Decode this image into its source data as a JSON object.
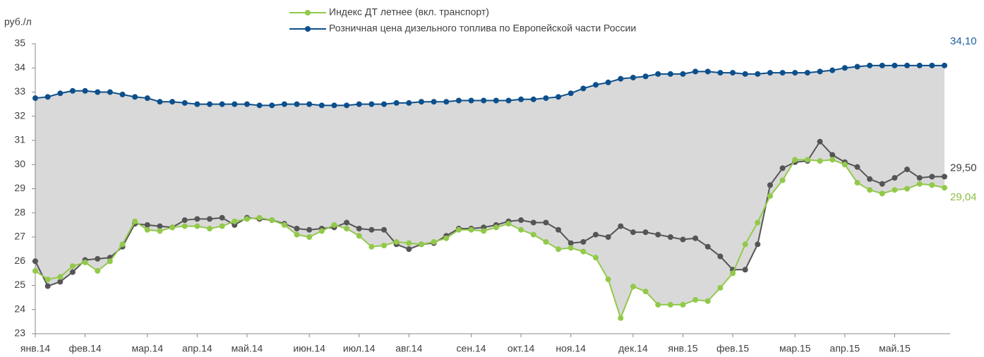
{
  "chart_data": {
    "type": "line",
    "y_label": "руб./л",
    "ylim": [
      23,
      35
    ],
    "yticks": [
      23,
      24,
      25,
      26,
      27,
      28,
      29,
      30,
      31,
      32,
      33,
      34,
      35
    ],
    "fill_between": true,
    "fill_color": "#d9d9d9",
    "categories": [
      "янв.14",
      null,
      null,
      null,
      "фев.14",
      null,
      null,
      null,
      null,
      "мар.14",
      null,
      null,
      null,
      "апр.14",
      null,
      null,
      null,
      "май.14",
      null,
      null,
      null,
      null,
      "июн.14",
      null,
      null,
      null,
      "июл.14",
      null,
      null,
      null,
      "авг.14",
      null,
      null,
      null,
      null,
      "сен.14",
      null,
      null,
      null,
      "окт.14",
      null,
      null,
      null,
      "ноя.14",
      null,
      null,
      null,
      null,
      "дек.14",
      null,
      null,
      null,
      "янв.15",
      null,
      null,
      null,
      "фев.15",
      null,
      null,
      null,
      null,
      "мар.15",
      null,
      null,
      null,
      "апр.15",
      null,
      null,
      null,
      "май.15",
      null,
      null,
      null,
      null
    ],
    "series": [
      {
        "name": "Индекс ДТ летнее  (вкл. транспорт)",
        "color": "#92c94a",
        "label_color": "#8cbf3f",
        "values": [
          25.6,
          25.25,
          25.35,
          25.8,
          25.95,
          25.6,
          26.0,
          26.7,
          27.65,
          27.3,
          27.25,
          27.4,
          27.45,
          27.45,
          27.35,
          27.45,
          27.65,
          27.75,
          27.8,
          27.7,
          27.5,
          27.1,
          27.0,
          27.25,
          27.5,
          27.35,
          27.05,
          26.6,
          26.65,
          26.8,
          26.75,
          26.7,
          26.8,
          26.95,
          27.3,
          27.3,
          27.25,
          27.4,
          27.55,
          27.3,
          27.1,
          26.8,
          26.5,
          26.55,
          26.4,
          26.15,
          25.25,
          23.65,
          24.95,
          24.75,
          24.2,
          24.2,
          24.2,
          24.4,
          24.35,
          24.9,
          25.5,
          26.7,
          27.6,
          28.7,
          29.35,
          30.2,
          30.2,
          30.15,
          30.2,
          30.0,
          29.25,
          28.95,
          28.8,
          28.95,
          29.0,
          29.2,
          29.15,
          29.04
        ],
        "value_labels": [
          null,
          null,
          null,
          null,
          null,
          null,
          null,
          null,
          null,
          null,
          null,
          null,
          null,
          null,
          null,
          null,
          null,
          null,
          null,
          null,
          null,
          null,
          null,
          null,
          null,
          null,
          null,
          null,
          null,
          null,
          null,
          null,
          null,
          null,
          null,
          null,
          null,
          null,
          null,
          null,
          null,
          null,
          null,
          null,
          null,
          null,
          null,
          null,
          null,
          null,
          null,
          null,
          null,
          null,
          null,
          null,
          null,
          null,
          null,
          null,
          null,
          null,
          null,
          null,
          null,
          null,
          null,
          null,
          null,
          null,
          null,
          null,
          null,
          "29,04"
        ]
      },
      {
        "name": "Розничная цена дизельного топлива  по Европейской части России",
        "color": "#0d4f8b",
        "label_color": "#1f5fa0",
        "values": [
          32.75,
          32.8,
          32.95,
          33.05,
          33.05,
          33.0,
          33.0,
          32.9,
          32.8,
          32.75,
          32.6,
          32.6,
          32.55,
          32.5,
          32.5,
          32.5,
          32.5,
          32.5,
          32.45,
          32.45,
          32.5,
          32.5,
          32.5,
          32.45,
          32.45,
          32.45,
          32.5,
          32.5,
          32.5,
          32.55,
          32.55,
          32.6,
          32.6,
          32.6,
          32.65,
          32.65,
          32.65,
          32.65,
          32.65,
          32.7,
          32.7,
          32.75,
          32.8,
          32.95,
          33.15,
          33.3,
          33.4,
          33.55,
          33.6,
          33.65,
          33.75,
          33.75,
          33.75,
          33.85,
          33.85,
          33.8,
          33.8,
          33.75,
          33.75,
          33.8,
          33.8,
          33.8,
          33.8,
          33.85,
          33.9,
          34.0,
          34.05,
          34.1,
          34.1,
          34.1,
          34.1,
          34.1,
          34.1,
          34.1
        ],
        "value_labels": [
          null,
          null,
          null,
          null,
          null,
          null,
          null,
          null,
          null,
          null,
          null,
          null,
          null,
          null,
          null,
          null,
          null,
          null,
          null,
          null,
          null,
          null,
          null,
          null,
          null,
          null,
          null,
          null,
          null,
          null,
          null,
          null,
          null,
          null,
          null,
          null,
          null,
          null,
          null,
          null,
          null,
          null,
          null,
          null,
          null,
          null,
          null,
          null,
          null,
          null,
          null,
          null,
          null,
          null,
          null,
          null,
          null,
          null,
          null,
          null,
          null,
          null,
          null,
          null,
          null,
          null,
          null,
          null,
          null,
          null,
          null,
          null,
          null,
          "34,10"
        ]
      },
      {
        "color": "#555555",
        "label_color": "#404040",
        "values": [
          26.0,
          24.97,
          25.15,
          25.55,
          26.05,
          26.1,
          26.15,
          26.6,
          27.55,
          27.5,
          27.45,
          27.4,
          27.7,
          27.75,
          27.75,
          27.8,
          27.5,
          27.8,
          27.75,
          27.7,
          27.55,
          27.35,
          27.3,
          27.35,
          27.4,
          27.6,
          27.35,
          27.3,
          27.3,
          26.7,
          26.5,
          26.7,
          26.75,
          27.05,
          27.35,
          27.35,
          27.4,
          27.5,
          27.65,
          27.7,
          27.6,
          27.6,
          27.3,
          26.75,
          26.8,
          27.1,
          27.0,
          27.45,
          27.2,
          27.2,
          27.1,
          27.0,
          26.9,
          26.95,
          26.6,
          26.2,
          25.65,
          25.65,
          26.7,
          29.15,
          29.85,
          30.1,
          30.15,
          30.95,
          30.4,
          30.1,
          29.9,
          29.4,
          29.2,
          29.45,
          29.8,
          29.45,
          29.5,
          29.5
        ],
        "value_labels": [
          null,
          null,
          null,
          null,
          null,
          null,
          null,
          null,
          null,
          null,
          null,
          null,
          null,
          null,
          null,
          null,
          null,
          null,
          null,
          null,
          null,
          null,
          null,
          null,
          null,
          null,
          null,
          null,
          null,
          null,
          null,
          null,
          null,
          null,
          null,
          null,
          null,
          null,
          null,
          null,
          null,
          null,
          null,
          null,
          null,
          null,
          null,
          null,
          null,
          null,
          null,
          null,
          null,
          null,
          null,
          null,
          null,
          null,
          null,
          null,
          null,
          null,
          null,
          null,
          null,
          null,
          null,
          null,
          null,
          null,
          null,
          null,
          null,
          "29,50"
        ]
      }
    ]
  }
}
